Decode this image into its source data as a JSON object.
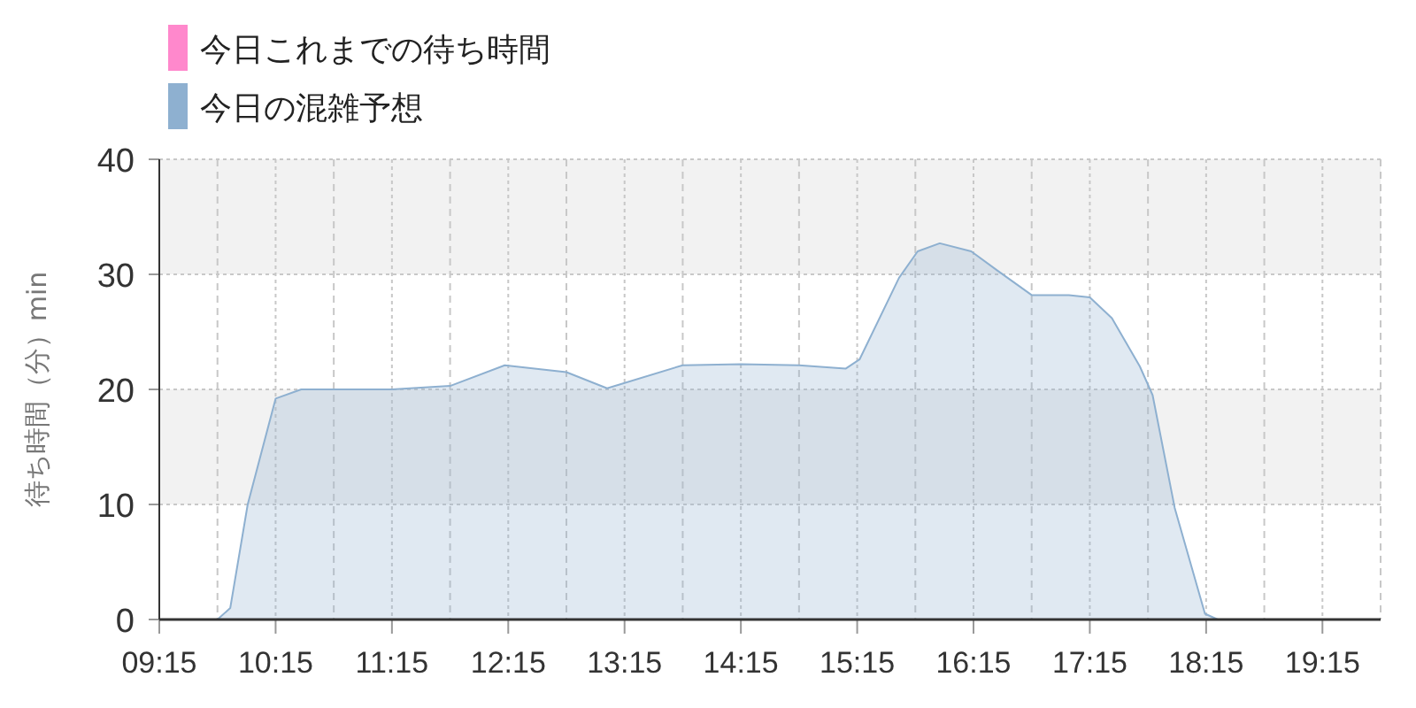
{
  "chart_data": {
    "type": "area",
    "ylabel": "待ち時間（分）min",
    "xlim": [
      9.25,
      19.75
    ],
    "ylim": [
      0,
      40
    ],
    "xticks": [
      {
        "value": 9.25,
        "label": "09:15"
      },
      {
        "value": 9.75,
        "label": null
      },
      {
        "value": 10.25,
        "label": "10:15"
      },
      {
        "value": 10.75,
        "label": null
      },
      {
        "value": 11.25,
        "label": "11:15"
      },
      {
        "value": 11.75,
        "label": null
      },
      {
        "value": 12.25,
        "label": "12:15"
      },
      {
        "value": 12.75,
        "label": null
      },
      {
        "value": 13.25,
        "label": "13:15"
      },
      {
        "value": 13.75,
        "label": null
      },
      {
        "value": 14.25,
        "label": "14:15"
      },
      {
        "value": 14.75,
        "label": null
      },
      {
        "value": 15.25,
        "label": "15:15"
      },
      {
        "value": 15.75,
        "label": null
      },
      {
        "value": 16.25,
        "label": "16:15"
      },
      {
        "value": 16.75,
        "label": null
      },
      {
        "value": 17.25,
        "label": "17:15"
      },
      {
        "value": 17.75,
        "label": null
      },
      {
        "value": 18.25,
        "label": "18:15"
      },
      {
        "value": 18.75,
        "label": null
      },
      {
        "value": 19.25,
        "label": "19:15"
      },
      {
        "value": 19.75,
        "label": null
      }
    ],
    "yticks": [
      0,
      10,
      20,
      30,
      40
    ],
    "grid": true,
    "legend": "top left",
    "bands": [
      {
        "axis": "y",
        "from": 10,
        "to": 20,
        "color": "#f2f2f2"
      },
      {
        "axis": "y",
        "from": 30,
        "to": 40,
        "color": "#f2f2f2"
      }
    ],
    "series": [
      {
        "name": "今日これまでの待ち時間",
        "color": "#ff88cc"
      },
      {
        "name": "今日の混雑予想",
        "color": "#8eb0d0",
        "x": [
          9.25,
          9.5,
          9.75,
          9.86,
          10.01,
          10.25,
          10.47,
          11.25,
          11.75,
          12.22,
          12.75,
          13.1,
          13.75,
          14.25,
          14.75,
          15.15,
          15.27,
          15.61,
          15.77,
          15.96,
          16.23,
          16.46,
          16.75,
          17.07,
          17.25,
          17.44,
          17.68,
          17.79,
          17.98,
          18.24,
          18.35,
          18.75,
          19.75
        ],
        "values": [
          0,
          0,
          0,
          1,
          10,
          19.2,
          20,
          20,
          20.3,
          22.1,
          21.5,
          20.1,
          22.1,
          22.2,
          22.1,
          21.8,
          22.6,
          29.7,
          32,
          32.7,
          32,
          30.3,
          28.2,
          28.2,
          28,
          26.2,
          22,
          19.5,
          9.7,
          0.5,
          0,
          0,
          0
        ]
      }
    ]
  }
}
